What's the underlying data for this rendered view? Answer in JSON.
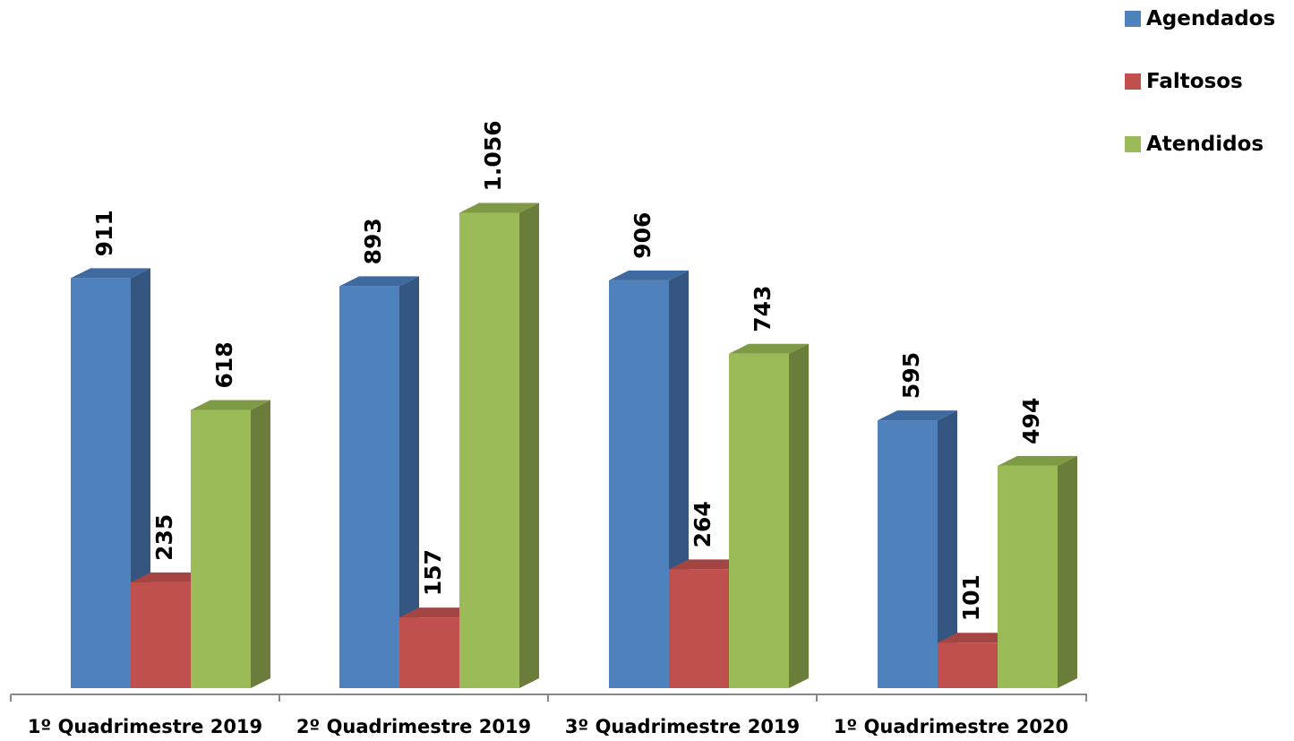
{
  "chart_data": {
    "type": "bar",
    "title": "",
    "xlabel": "",
    "ylabel": "",
    "categories": [
      "1º Quadrimestre 2019",
      "2º Quadrimestre 2019",
      "3º Quadrimestre 2019",
      "1º Quadrimestre 2020"
    ],
    "series": [
      {
        "name": "Agendados",
        "values": [
          911,
          893,
          906,
          595
        ],
        "labels": [
          "911",
          "893",
          "906",
          "595"
        ],
        "color": "#4f81bd"
      },
      {
        "name": "Faltosos",
        "values": [
          235,
          157,
          264,
          101
        ],
        "labels": [
          "235",
          "157",
          "264",
          "101"
        ],
        "color": "#c0504d"
      },
      {
        "name": "Atendidos",
        "values": [
          618,
          1056,
          743,
          494
        ],
        "labels": [
          "618",
          "1.056",
          "743",
          "494"
        ],
        "color": "#9bbb59"
      }
    ],
    "ylim": [
      0,
      1056
    ],
    "grid": false,
    "legend_position": "top-right",
    "style": "3d-columns"
  }
}
